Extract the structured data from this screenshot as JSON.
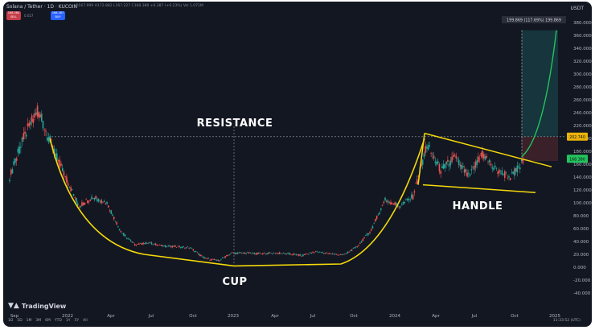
{
  "header": {
    "symbol_title": "Solana / Tether · 1D · KUCOIN",
    "ohlc_text": "O167.999 H172.882 L167.227 C168.380 +0.387 (+0.23%) Vol 1.071M",
    "sell_label": "SELL",
    "buy_label": "BUY",
    "sell_price": "168.360",
    "buy_price": "168.387",
    "spread": "0.027",
    "currency": "USDT"
  },
  "footer": {
    "logo_text": "TradingView",
    "ranges": [
      "1D",
      "5D",
      "1M",
      "3M",
      "6M",
      "YTD",
      "1Y",
      "5Y",
      "All"
    ],
    "clock": "11:33:52 (UTC)"
  },
  "chart_data": {
    "type": "line",
    "title": "Solana / Tether · 1D · KUCOIN",
    "y_axis": {
      "unit": "USDT",
      "ylim": [
        -40,
        380
      ],
      "ticks": [
        -40,
        -20,
        0,
        20,
        40,
        60,
        80,
        100,
        120,
        140,
        160,
        180,
        200,
        220,
        240,
        260,
        280,
        300,
        320,
        340,
        360,
        380
      ],
      "tick_labels": [
        "-40.000",
        "-20.000",
        "0.000",
        "20.000",
        "40.000",
        "60.000",
        "80.000",
        "100.000",
        "120.000",
        "140.000",
        "160.000",
        "180.000",
        "200.000",
        "220.000",
        "240.000",
        "260.000",
        "280.000",
        "300.000",
        "320.000",
        "340.000",
        "360.000",
        "380.000"
      ],
      "side": "right"
    },
    "x_axis": {
      "tick_labels": [
        "Sep",
        "2022",
        "Apr",
        "Jul",
        "Oct",
        "2023",
        "Apr",
        "Jul",
        "Oct",
        "2024",
        "Apr",
        "Jul",
        "Oct",
        "2025"
      ]
    },
    "series": [
      {
        "type": "candlestick",
        "x": [
          "2021-09",
          "2021-10",
          "2021-11",
          "2021-12",
          "2022-01",
          "2022-02",
          "2022-03",
          "2022-04",
          "2022-05",
          "2022-06",
          "2022-07",
          "2022-08",
          "2022-09",
          "2022-10",
          "2022-11",
          "2022-12",
          "2023-01",
          "2023-02",
          "2023-03",
          "2023-04",
          "2023-05",
          "2023-06",
          "2023-07",
          "2023-08",
          "2023-09",
          "2023-10",
          "2023-11",
          "2023-12",
          "2024-01",
          "2024-02",
          "2024-03",
          "2024-04",
          "2024-05",
          "2024-06",
          "2024-07",
          "2024-08",
          "2024-09",
          "2024-10"
        ],
        "values": [
          140,
          200,
          245,
          190,
          140,
          95,
          110,
          100,
          55,
          35,
          38,
          33,
          32,
          30,
          14,
          10,
          22,
          22,
          21,
          22,
          21,
          18,
          24,
          21,
          19,
          32,
          58,
          105,
          95,
          110,
          190,
          150,
          170,
          140,
          175,
          150,
          140,
          165
        ]
      }
    ],
    "price_lines": [
      {
        "value": 202.74,
        "label": "202.740",
        "color": "#eab308"
      },
      {
        "value": 168.38,
        "label": "168.380",
        "color": "#22c55e"
      }
    ],
    "target_label": "199.869 (117.69%) 199.869",
    "target_value": 368,
    "annotations": [
      "RESISTANCE",
      "CUP",
      "HANDLE"
    ],
    "grid": false,
    "legend": "none"
  }
}
